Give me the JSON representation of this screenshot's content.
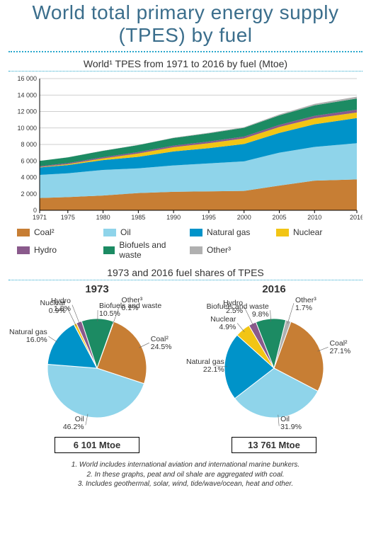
{
  "title": "World total primary energy supply (TPES) by fuel",
  "area_chart": {
    "subtitle": "World¹ TPES from 1971 to 2016 by fuel (Mtoe)",
    "type": "stacked-area",
    "x_ticks": [
      1971,
      1975,
      1980,
      1985,
      1990,
      1995,
      2000,
      2005,
      2010,
      2016
    ],
    "xlim": [
      1971,
      2016
    ],
    "ylim": [
      0,
      16000
    ],
    "y_ticks": [
      0,
      2000,
      4000,
      6000,
      8000,
      10000,
      12000,
      14000,
      16000
    ],
    "y_tick_labels": [
      "0",
      "2 000",
      "4 000",
      "6 000",
      "8 000",
      "10 000",
      "12 000",
      "14 000",
      "16 000"
    ],
    "grid_color": "#bfbfbf",
    "axis_color": "#000000",
    "label_fontsize": 9,
    "categories_order": [
      "coal",
      "oil",
      "natural_gas",
      "nuclear",
      "hydro",
      "biofuels",
      "other"
    ],
    "years": [
      1971,
      1975,
      1980,
      1985,
      1990,
      1995,
      2000,
      2005,
      2010,
      2016
    ],
    "series": {
      "coal": [
        1500,
        1600,
        1800,
        2100,
        2250,
        2300,
        2350,
        3000,
        3600,
        3750
      ],
      "oil": [
        2800,
        2900,
        3100,
        3000,
        3200,
        3400,
        3600,
        4000,
        4100,
        4400
      ],
      "natural_gas": [
        900,
        1000,
        1200,
        1400,
        1700,
        1850,
        2100,
        2400,
        2750,
        3050
      ],
      "nuclear": [
        50,
        100,
        200,
        400,
        520,
        600,
        680,
        720,
        720,
        680
      ],
      "hydro": [
        110,
        130,
        150,
        170,
        190,
        210,
        230,
        260,
        300,
        350
      ],
      "biofuels": [
        640,
        700,
        780,
        850,
        920,
        1000,
        1060,
        1150,
        1280,
        1350
      ],
      "other": [
        5,
        10,
        20,
        30,
        50,
        60,
        80,
        120,
        180,
        230
      ]
    }
  },
  "colors": {
    "coal": "#c77e34",
    "oil": "#8fd4ea",
    "natural_gas": "#0093c9",
    "nuclear": "#f2c515",
    "hydro": "#8a5a8c",
    "biofuels": "#1c8b63",
    "other": "#b0b0b0"
  },
  "legend": [
    {
      "key": "coal",
      "label": "Coal²"
    },
    {
      "key": "oil",
      "label": "Oil"
    },
    {
      "key": "natural_gas",
      "label": "Natural gas"
    },
    {
      "key": "nuclear",
      "label": "Nuclear"
    },
    {
      "key": "hydro",
      "label": "Hydro"
    },
    {
      "key": "biofuels",
      "label": "Biofuels and waste"
    },
    {
      "key": "other",
      "label": "Other³"
    }
  ],
  "pies": {
    "subtitle": "1973 and 2016 fuel shares of TPES",
    "p1973": {
      "year": "1973",
      "total": "6 101 Mtoe",
      "slices": [
        {
          "key": "coal",
          "label": "Coal²",
          "pct": 24.5
        },
        {
          "key": "oil",
          "label": "Oil",
          "pct": 46.2
        },
        {
          "key": "natural_gas",
          "label": "Natural gas",
          "pct": 16.0
        },
        {
          "key": "nuclear",
          "label": "Nuclear",
          "pct": 0.9
        },
        {
          "key": "hydro",
          "label": "Hydro",
          "pct": 1.8
        },
        {
          "key": "biofuels",
          "label": "Biofuels and waste",
          "pct": 10.5
        },
        {
          "key": "other",
          "label": "Other³",
          "pct": 0.1
        }
      ]
    },
    "p2016": {
      "year": "2016",
      "total": "13 761 Mtoe",
      "slices": [
        {
          "key": "coal",
          "label": "Coal²",
          "pct": 27.1
        },
        {
          "key": "oil",
          "label": "Oil",
          "pct": 31.9
        },
        {
          "key": "natural_gas",
          "label": "Natural gas",
          "pct": 22.1
        },
        {
          "key": "nuclear",
          "label": "Nuclear",
          "pct": 4.9
        },
        {
          "key": "hydro",
          "label": "Hydro",
          "pct": 2.5
        },
        {
          "key": "biofuels",
          "label": "Biofuels and waste",
          "pct": 9.8
        },
        {
          "key": "other",
          "label": "Other³",
          "pct": 1.7
        }
      ]
    },
    "radius": 70,
    "start_angle_deg": 20,
    "label_offset": 12
  },
  "footnotes": [
    "1. World includes international aviation and international marine bunkers.",
    "2. In these graphs, peat and oil shale are aggregated with coal.",
    "3. Includes geothermal, solar, wind, tide/wave/ocean, heat and other."
  ]
}
